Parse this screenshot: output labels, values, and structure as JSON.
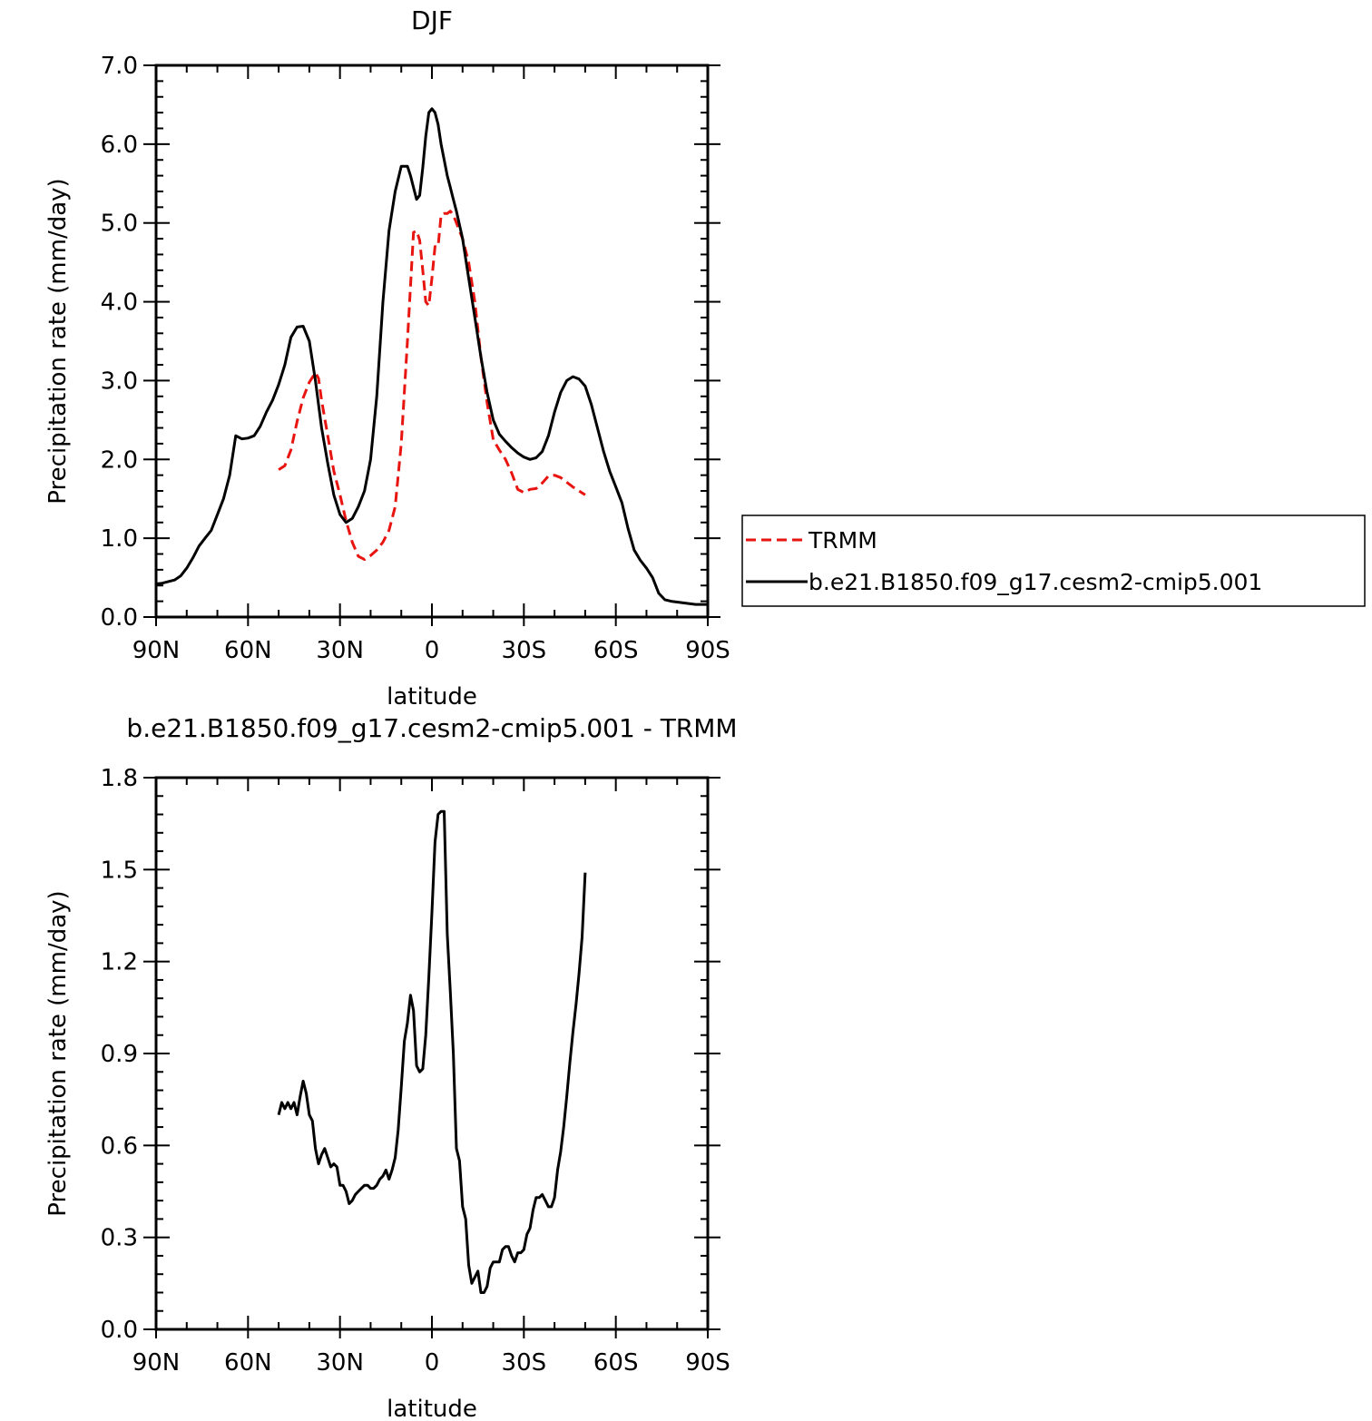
{
  "chart_data": [
    {
      "type": "line",
      "title": "DJF",
      "xlabel": "latitude",
      "ylabel": "Precipitation rate (mm/day)",
      "xlim": [
        90,
        -90
      ],
      "ylim": [
        0,
        7
      ],
      "x_ticks": [
        90,
        60,
        30,
        0,
        -30,
        -60,
        -90
      ],
      "x_tick_labels": [
        "90N",
        "60N",
        "30N",
        "0",
        "30S",
        "60S",
        "90S"
      ],
      "y_ticks": [
        0,
        1,
        2,
        3,
        4,
        5,
        6,
        7
      ],
      "y_tick_labels": [
        "0.0",
        "1.0",
        "2.0",
        "3.0",
        "4.0",
        "5.0",
        "6.0",
        "7.0"
      ],
      "grid": false,
      "legend": "right",
      "series": [
        {
          "name": "TRMM",
          "color": "#e8140f",
          "dash": "dashed",
          "x": [
            50,
            48,
            46,
            44,
            42,
            40,
            38,
            37,
            36,
            34,
            32,
            30,
            28,
            26,
            24,
            22,
            20,
            18,
            16,
            14,
            12,
            10,
            8,
            7,
            6,
            5,
            4,
            3,
            2,
            1,
            0,
            -1,
            -2,
            -3,
            -4,
            -5,
            -6,
            -7,
            -8,
            -10,
            -12,
            -14,
            -16,
            -18,
            -20,
            -22,
            -24,
            -26,
            -28,
            -30,
            -32,
            -34,
            -36,
            -38,
            -40,
            -42,
            -44,
            -46,
            -48,
            -50
          ],
          "y": [
            1.87,
            1.92,
            2.12,
            2.48,
            2.78,
            2.98,
            3.1,
            3.03,
            2.75,
            2.3,
            1.85,
            1.55,
            1.22,
            0.95,
            0.77,
            0.73,
            0.78,
            0.85,
            0.95,
            1.1,
            1.4,
            2.2,
            3.5,
            4.2,
            4.88,
            4.9,
            4.78,
            4.4,
            4.0,
            3.95,
            4.3,
            4.7,
            4.7,
            5.1,
            5.12,
            5.12,
            5.15,
            5.1,
            5.0,
            4.8,
            4.5,
            4.0,
            3.3,
            2.72,
            2.25,
            2.12,
            2.0,
            1.83,
            1.62,
            1.58,
            1.62,
            1.63,
            1.7,
            1.79,
            1.8,
            1.77,
            1.71,
            1.65,
            1.6,
            1.55
          ]
        },
        {
          "name": "b.e21.B1850.f09_g17.cesm2-cmip5.001",
          "color": "#000000",
          "dash": "solid",
          "x": [
            90,
            88,
            86,
            84,
            82,
            80,
            78,
            76,
            74,
            72,
            70,
            68,
            66,
            64,
            62,
            60,
            58,
            56,
            54,
            52,
            50,
            48,
            46,
            44,
            42,
            40,
            38,
            36,
            34,
            32,
            30,
            28,
            26,
            24,
            22,
            20,
            18,
            16,
            14,
            12,
            10,
            8,
            7,
            6,
            5,
            4,
            3,
            2,
            1,
            0,
            -1,
            -2,
            -3,
            -4,
            -5,
            -6,
            -7,
            -8,
            -10,
            -12,
            -14,
            -16,
            -18,
            -20,
            -22,
            -24,
            -26,
            -28,
            -30,
            -32,
            -34,
            -36,
            -38,
            -40,
            -42,
            -44,
            -46,
            -48,
            -50,
            -52,
            -54,
            -56,
            -58,
            -60,
            -62,
            -64,
            -66,
            -68,
            -70,
            -72,
            -74,
            -76,
            -78,
            -80,
            -82,
            -84,
            -86,
            -88,
            -90
          ],
          "y": [
            0.42,
            0.43,
            0.45,
            0.47,
            0.52,
            0.62,
            0.75,
            0.9,
            1.0,
            1.1,
            1.3,
            1.5,
            1.8,
            2.3,
            2.26,
            2.27,
            2.3,
            2.42,
            2.6,
            2.75,
            2.95,
            3.2,
            3.55,
            3.68,
            3.69,
            3.5,
            3.0,
            2.4,
            1.95,
            1.55,
            1.3,
            1.2,
            1.25,
            1.4,
            1.6,
            2.0,
            2.8,
            4.0,
            4.9,
            5.4,
            5.72,
            5.72,
            5.6,
            5.45,
            5.3,
            5.35,
            5.7,
            6.1,
            6.4,
            6.45,
            6.4,
            6.25,
            6.0,
            5.8,
            5.6,
            5.45,
            5.3,
            5.15,
            4.8,
            4.3,
            3.8,
            3.3,
            2.85,
            2.5,
            2.32,
            2.23,
            2.15,
            2.08,
            2.03,
            2.0,
            2.02,
            2.1,
            2.3,
            2.6,
            2.85,
            3.0,
            3.05,
            3.02,
            2.93,
            2.7,
            2.4,
            2.1,
            1.85,
            1.65,
            1.45,
            1.12,
            0.85,
            0.72,
            0.62,
            0.5,
            0.3,
            0.22,
            0.2,
            0.19,
            0.18,
            0.17,
            0.16,
            0.16,
            0.16
          ]
        }
      ]
    },
    {
      "type": "line",
      "title": "b.e21.B1850.f09_g17.cesm2-cmip5.001 - TRMM",
      "xlabel": "latitude",
      "ylabel": "Precipitation rate (mm/day)",
      "xlim": [
        90,
        -90
      ],
      "ylim": [
        0,
        1.8
      ],
      "x_ticks": [
        90,
        60,
        30,
        0,
        -30,
        -60,
        -90
      ],
      "x_tick_labels": [
        "90N",
        "60N",
        "30N",
        "0",
        "30S",
        "60S",
        "90S"
      ],
      "y_ticks": [
        0,
        0.3,
        0.6,
        0.9,
        1.2,
        1.5,
        1.8
      ],
      "y_tick_labels": [
        "0.0",
        "0.3",
        "0.6",
        "0.9",
        "1.2",
        "1.5",
        "1.8"
      ],
      "grid": false,
      "legend": "none",
      "series": [
        {
          "color": "#000000",
          "dash": "solid",
          "x": [
            50,
            49,
            48,
            47,
            46,
            45,
            44,
            43,
            42,
            41,
            40,
            39,
            38,
            37,
            36,
            35,
            34,
            33,
            32,
            31,
            30,
            29,
            28,
            27,
            26,
            25,
            24,
            23,
            22,
            21,
            20,
            19,
            18,
            17,
            16,
            15,
            14,
            13,
            12,
            11,
            10,
            9,
            8,
            7,
            6,
            5,
            4,
            3,
            2,
            1,
            0,
            -1,
            -2,
            -3,
            -4,
            -5,
            -6,
            -7,
            -8,
            -9,
            -10,
            -11,
            -12,
            -13,
            -14,
            -15,
            -16,
            -17,
            -18,
            -19,
            -20,
            -21,
            -22,
            -23,
            -24,
            -25,
            -26,
            -27,
            -28,
            -29,
            -30,
            -31,
            -32,
            -33,
            -34,
            -35,
            -36,
            -37,
            -38,
            -39,
            -40,
            -41,
            -42,
            -43,
            -44,
            -45,
            -46,
            -47,
            -48,
            -49,
            -50
          ],
          "y": [
            0.7,
            0.74,
            0.72,
            0.74,
            0.72,
            0.74,
            0.7,
            0.76,
            0.81,
            0.77,
            0.7,
            0.68,
            0.59,
            0.54,
            0.57,
            0.59,
            0.56,
            0.53,
            0.54,
            0.53,
            0.47,
            0.47,
            0.45,
            0.41,
            0.42,
            0.44,
            0.45,
            0.46,
            0.47,
            0.47,
            0.46,
            0.46,
            0.47,
            0.49,
            0.5,
            0.52,
            0.49,
            0.52,
            0.56,
            0.65,
            0.79,
            0.94,
            1.0,
            1.09,
            1.04,
            0.86,
            0.84,
            0.85,
            0.96,
            1.15,
            1.36,
            1.59,
            1.68,
            1.69,
            1.69,
            1.29,
            1.1,
            0.9,
            0.59,
            0.55,
            0.4,
            0.36,
            0.21,
            0.15,
            0.17,
            0.19,
            0.12,
            0.12,
            0.14,
            0.2,
            0.22,
            0.22,
            0.22,
            0.26,
            0.27,
            0.27,
            0.24,
            0.22,
            0.25,
            0.25,
            0.26,
            0.31,
            0.33,
            0.39,
            0.43,
            0.43,
            0.44,
            0.42,
            0.4,
            0.4,
            0.43,
            0.52,
            0.58,
            0.66,
            0.76,
            0.87,
            0.97,
            1.06,
            1.16,
            1.28,
            1.49
          ]
        }
      ]
    }
  ]
}
